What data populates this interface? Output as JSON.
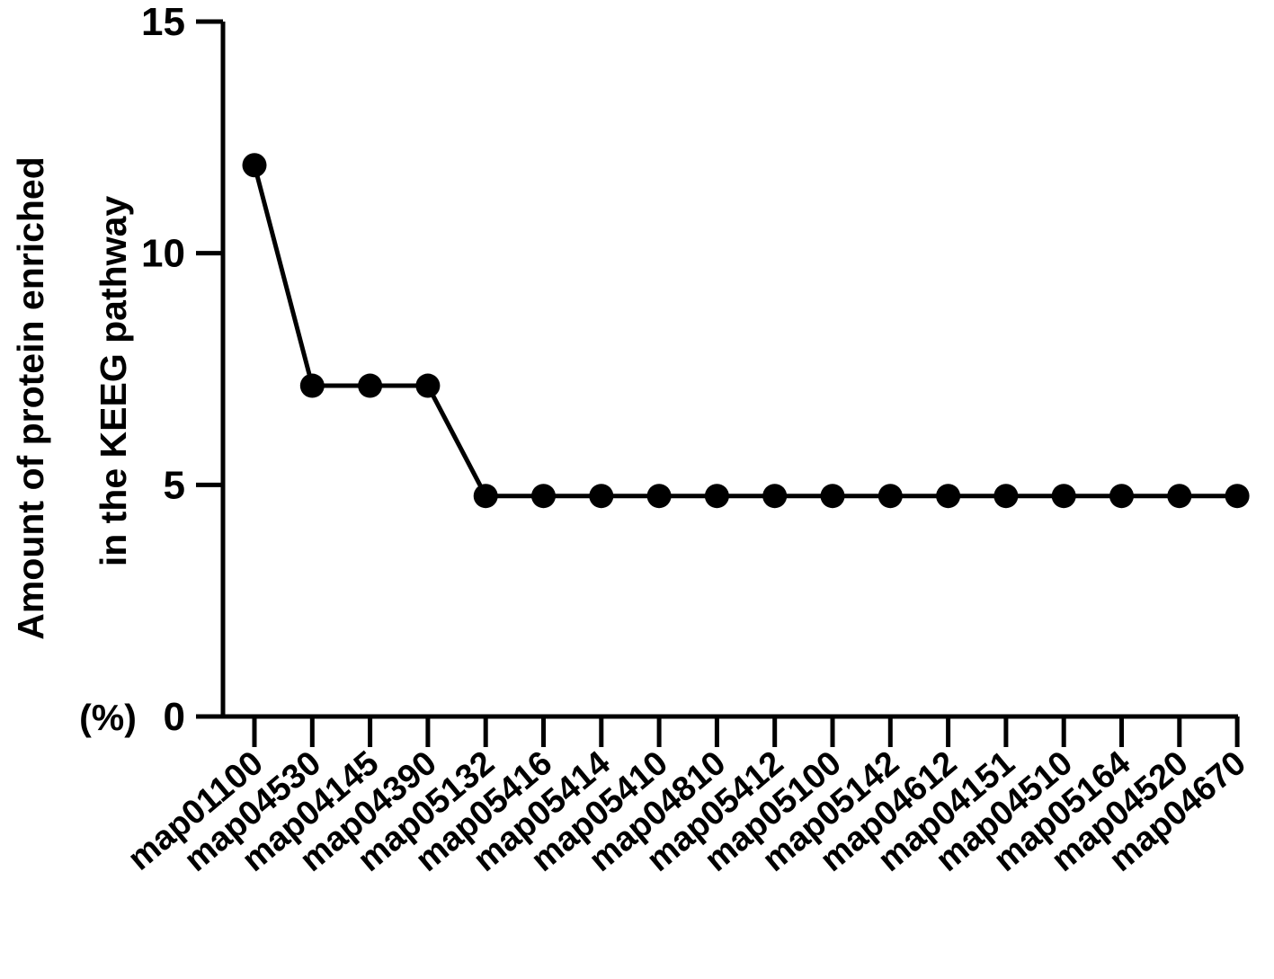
{
  "chart_data": {
    "type": "line",
    "title": "",
    "xlabel": "",
    "ylabel_lines": [
      "Amount of protein enriched",
      "in the KEEG pathway",
      "(%)"
    ],
    "categories": [
      "map01100",
      "map04530",
      "map04145",
      "map04390",
      "map05132",
      "map05416",
      "map05414",
      "map05410",
      "map04810",
      "map05412",
      "map05100",
      "map05142",
      "map04612",
      "map04151",
      "map04510",
      "map05164",
      "map04520",
      "map04670"
    ],
    "series": [
      {
        "values": [
          11.9,
          7.14,
          7.14,
          7.14,
          4.76,
          4.76,
          4.76,
          4.76,
          4.76,
          4.76,
          4.76,
          4.76,
          4.76,
          4.76,
          4.76,
          4.76,
          4.76,
          4.76
        ]
      }
    ],
    "ylim": [
      0,
      15
    ],
    "yticks": [
      "0",
      "5",
      "10",
      "15"
    ],
    "grid": false,
    "legend": "none",
    "colors": {
      "line": "#000000",
      "marker": "#000000",
      "axis": "#000000"
    }
  }
}
